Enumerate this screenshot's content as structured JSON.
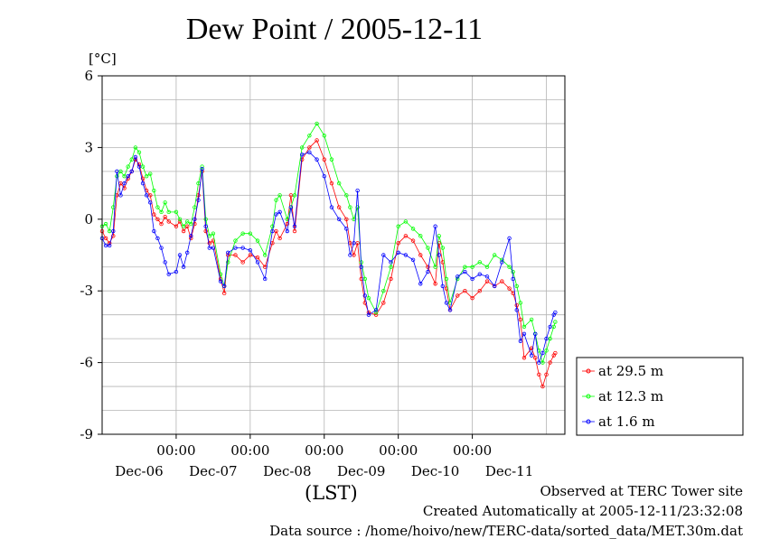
{
  "chart_data": {
    "type": "line",
    "title": "Dew Point / 2005-12-11",
    "ylabel": "[°C]",
    "xlabel": "(LST)",
    "ylim": [
      -9,
      6
    ],
    "yticks": [
      -9,
      -6,
      -3,
      0,
      3,
      6
    ],
    "xlim": [
      0,
      6.25
    ],
    "xticks": [
      {
        "x": 1,
        "top": "00:00",
        "bottom": "Dec-07"
      },
      {
        "x": 2,
        "top": "00:00",
        "bottom": "Dec-08"
      },
      {
        "x": 3,
        "top": "00:00",
        "bottom": "Dec-09"
      },
      {
        "x": 4,
        "top": "00:00",
        "bottom": "Dec-10"
      },
      {
        "x": 5,
        "top": "00:00",
        "bottom": "Dec-11"
      }
    ],
    "day_labels": [
      {
        "x": 0.5,
        "label": "Dec-06"
      },
      {
        "x": 1.5,
        "label": "Dec-07"
      },
      {
        "x": 2.5,
        "label": "Dec-08"
      },
      {
        "x": 3.5,
        "label": "Dec-09"
      },
      {
        "x": 4.5,
        "label": "Dec-10"
      },
      {
        "x": 5.5,
        "label": "Dec-11"
      }
    ],
    "x_note": "x = days since 2005-12-06 00:00 LST",
    "grid": true,
    "legend_position": "bottom-right, outside",
    "series": [
      {
        "name": "at 29.5 m",
        "color": "#ff0000",
        "points": [
          [
            0,
            -0.5
          ],
          [
            0.05,
            -0.8
          ],
          [
            0.1,
            -1.0
          ],
          [
            0.15,
            -0.7
          ],
          [
            0.2,
            1.0
          ],
          [
            0.25,
            1.5
          ],
          [
            0.3,
            1.3
          ],
          [
            0.35,
            1.7
          ],
          [
            0.4,
            2.0
          ],
          [
            0.45,
            2.5
          ],
          [
            0.5,
            2.3
          ],
          [
            0.55,
            1.7
          ],
          [
            0.6,
            1.2
          ],
          [
            0.65,
            1.0
          ],
          [
            0.7,
            0.2
          ],
          [
            0.75,
            0.0
          ],
          [
            0.8,
            -0.2
          ],
          [
            0.85,
            0.1
          ],
          [
            0.9,
            -0.1
          ],
          [
            1.0,
            -0.3
          ],
          [
            1.05,
            -0.1
          ],
          [
            1.1,
            -0.5
          ],
          [
            1.15,
            -0.3
          ],
          [
            1.2,
            -0.8
          ],
          [
            1.25,
            -0.2
          ],
          [
            1.3,
            1.0
          ],
          [
            1.35,
            2.0
          ],
          [
            1.4,
            -0.5
          ],
          [
            1.45,
            -1.0
          ],
          [
            1.5,
            -0.9
          ],
          [
            1.6,
            -2.5
          ],
          [
            1.65,
            -3.1
          ],
          [
            1.7,
            -1.5
          ],
          [
            1.8,
            -1.5
          ],
          [
            1.9,
            -1.8
          ],
          [
            2.0,
            -1.5
          ],
          [
            2.1,
            -1.6
          ],
          [
            2.2,
            -2.0
          ],
          [
            2.3,
            -1.0
          ],
          [
            2.35,
            -0.5
          ],
          [
            2.4,
            -0.8
          ],
          [
            2.5,
            -0.2
          ],
          [
            2.55,
            1.0
          ],
          [
            2.6,
            -0.5
          ],
          [
            2.7,
            2.5
          ],
          [
            2.8,
            3.0
          ],
          [
            2.9,
            3.3
          ],
          [
            3.0,
            2.5
          ],
          [
            3.1,
            1.5
          ],
          [
            3.2,
            0.5
          ],
          [
            3.3,
            0.0
          ],
          [
            3.35,
            -1.0
          ],
          [
            3.4,
            -1.5
          ],
          [
            3.45,
            -1.0
          ],
          [
            3.5,
            -2.5
          ],
          [
            3.55,
            -3.5
          ],
          [
            3.6,
            -3.9
          ],
          [
            3.7,
            -4.0
          ],
          [
            3.8,
            -3.5
          ],
          [
            3.9,
            -2.5
          ],
          [
            4.0,
            -1.0
          ],
          [
            4.1,
            -0.7
          ],
          [
            4.2,
            -0.9
          ],
          [
            4.3,
            -1.5
          ],
          [
            4.4,
            -2.0
          ],
          [
            4.5,
            -2.7
          ],
          [
            4.55,
            -1.0
          ],
          [
            4.6,
            -1.8
          ],
          [
            4.65,
            -2.9
          ],
          [
            4.7,
            -3.8
          ],
          [
            4.8,
            -3.2
          ],
          [
            4.9,
            -3.0
          ],
          [
            5.0,
            -3.3
          ],
          [
            5.1,
            -3.0
          ],
          [
            5.2,
            -2.6
          ],
          [
            5.3,
            -2.8
          ],
          [
            5.4,
            -2.6
          ],
          [
            5.5,
            -2.9
          ],
          [
            5.55,
            -3.1
          ],
          [
            5.6,
            -3.6
          ],
          [
            5.65,
            -4.2
          ],
          [
            5.7,
            -5.8
          ],
          [
            5.8,
            -5.4
          ],
          [
            5.85,
            -5.8
          ],
          [
            5.9,
            -6.5
          ],
          [
            5.95,
            -7.0
          ],
          [
            6.0,
            -6.5
          ],
          [
            6.05,
            -6.0
          ],
          [
            6.1,
            -5.7
          ],
          [
            6.12,
            -5.6
          ]
        ]
      },
      {
        "name": "at 12.3 m",
        "color": "#00ff00",
        "points": [
          [
            0,
            -0.3
          ],
          [
            0.05,
            -0.2
          ],
          [
            0.1,
            -0.5
          ],
          [
            0.15,
            0.5
          ],
          [
            0.2,
            1.8
          ],
          [
            0.25,
            2.0
          ],
          [
            0.3,
            1.8
          ],
          [
            0.35,
            2.2
          ],
          [
            0.4,
            2.5
          ],
          [
            0.45,
            3.0
          ],
          [
            0.5,
            2.8
          ],
          [
            0.55,
            2.2
          ],
          [
            0.6,
            1.8
          ],
          [
            0.65,
            1.9
          ],
          [
            0.7,
            1.2
          ],
          [
            0.75,
            0.5
          ],
          [
            0.8,
            0.3
          ],
          [
            0.85,
            0.7
          ],
          [
            0.9,
            0.3
          ],
          [
            1.0,
            0.3
          ],
          [
            1.05,
            0.0
          ],
          [
            1.1,
            -0.3
          ],
          [
            1.15,
            -0.1
          ],
          [
            1.2,
            -0.2
          ],
          [
            1.25,
            0.5
          ],
          [
            1.3,
            1.5
          ],
          [
            1.35,
            2.2
          ],
          [
            1.4,
            0.0
          ],
          [
            1.45,
            -0.7
          ],
          [
            1.5,
            -0.6
          ],
          [
            1.6,
            -2.3
          ],
          [
            1.65,
            -2.8
          ],
          [
            1.7,
            -1.8
          ],
          [
            1.8,
            -0.9
          ],
          [
            1.9,
            -0.6
          ],
          [
            2.0,
            -0.6
          ],
          [
            2.1,
            -0.9
          ],
          [
            2.2,
            -1.5
          ],
          [
            2.3,
            -0.3
          ],
          [
            2.35,
            0.8
          ],
          [
            2.4,
            1.0
          ],
          [
            2.5,
            0.0
          ],
          [
            2.55,
            0.5
          ],
          [
            2.6,
            1.0
          ],
          [
            2.7,
            3.0
          ],
          [
            2.8,
            3.5
          ],
          [
            2.9,
            4.0
          ],
          [
            3.0,
            3.5
          ],
          [
            3.1,
            2.5
          ],
          [
            3.2,
            1.5
          ],
          [
            3.3,
            1.0
          ],
          [
            3.35,
            0.5
          ],
          [
            3.4,
            0.0
          ],
          [
            3.45,
            0.5
          ],
          [
            3.5,
            -1.8
          ],
          [
            3.55,
            -2.5
          ],
          [
            3.6,
            -3.3
          ],
          [
            3.7,
            -3.9
          ],
          [
            3.8,
            -3.0
          ],
          [
            3.9,
            -2.0
          ],
          [
            4.0,
            -0.3
          ],
          [
            4.1,
            -0.1
          ],
          [
            4.2,
            -0.4
          ],
          [
            4.3,
            -0.7
          ],
          [
            4.4,
            -1.2
          ],
          [
            4.5,
            -2.0
          ],
          [
            4.55,
            -0.7
          ],
          [
            4.6,
            -1.2
          ],
          [
            4.65,
            -2.5
          ],
          [
            4.7,
            -3.5
          ],
          [
            4.8,
            -2.5
          ],
          [
            4.9,
            -2.0
          ],
          [
            5.0,
            -2.0
          ],
          [
            5.1,
            -1.8
          ],
          [
            5.2,
            -2.0
          ],
          [
            5.3,
            -1.5
          ],
          [
            5.4,
            -1.7
          ],
          [
            5.5,
            -2.0
          ],
          [
            5.55,
            -2.2
          ],
          [
            5.6,
            -2.8
          ],
          [
            5.65,
            -3.5
          ],
          [
            5.7,
            -4.5
          ],
          [
            5.8,
            -4.2
          ],
          [
            5.85,
            -4.8
          ],
          [
            5.9,
            -5.5
          ],
          [
            5.95,
            -6.0
          ],
          [
            6.0,
            -5.5
          ],
          [
            6.05,
            -5.0
          ],
          [
            6.1,
            -4.5
          ],
          [
            6.12,
            -4.3
          ]
        ]
      },
      {
        "name": "at 1.6 m",
        "color": "#0000ff",
        "points": [
          [
            0,
            -0.8
          ],
          [
            0.05,
            -1.1
          ],
          [
            0.1,
            -1.1
          ],
          [
            0.15,
            -0.5
          ],
          [
            0.2,
            2.0
          ],
          [
            0.25,
            1.0
          ],
          [
            0.3,
            1.5
          ],
          [
            0.35,
            1.8
          ],
          [
            0.4,
            2.0
          ],
          [
            0.45,
            2.6
          ],
          [
            0.5,
            2.2
          ],
          [
            0.55,
            1.5
          ],
          [
            0.6,
            1.0
          ],
          [
            0.65,
            0.7
          ],
          [
            0.7,
            -0.5
          ],
          [
            0.75,
            -0.8
          ],
          [
            0.8,
            -1.2
          ],
          [
            0.85,
            -1.8
          ],
          [
            0.9,
            -2.3
          ],
          [
            1.0,
            -2.2
          ],
          [
            1.05,
            -1.5
          ],
          [
            1.1,
            -2.0
          ],
          [
            1.15,
            -1.4
          ],
          [
            1.2,
            -0.7
          ],
          [
            1.25,
            0.0
          ],
          [
            1.3,
            0.8
          ],
          [
            1.35,
            2.1
          ],
          [
            1.4,
            -0.3
          ],
          [
            1.45,
            -1.2
          ],
          [
            1.5,
            -1.2
          ],
          [
            1.6,
            -2.6
          ],
          [
            1.65,
            -2.8
          ],
          [
            1.7,
            -1.4
          ],
          [
            1.8,
            -1.2
          ],
          [
            1.9,
            -1.2
          ],
          [
            2.0,
            -1.3
          ],
          [
            2.1,
            -1.8
          ],
          [
            2.2,
            -2.5
          ],
          [
            2.3,
            -0.5
          ],
          [
            2.35,
            0.2
          ],
          [
            2.4,
            0.3
          ],
          [
            2.5,
            -0.5
          ],
          [
            2.55,
            0.5
          ],
          [
            2.6,
            -0.3
          ],
          [
            2.7,
            2.7
          ],
          [
            2.8,
            2.8
          ],
          [
            2.9,
            2.5
          ],
          [
            3.0,
            1.8
          ],
          [
            3.1,
            0.5
          ],
          [
            3.2,
            0.0
          ],
          [
            3.3,
            -0.4
          ],
          [
            3.35,
            -1.5
          ],
          [
            3.4,
            -1.0
          ],
          [
            3.45,
            1.2
          ],
          [
            3.5,
            -2.0
          ],
          [
            3.55,
            -3.2
          ],
          [
            3.6,
            -4.0
          ],
          [
            3.7,
            -3.8
          ],
          [
            3.8,
            -1.5
          ],
          [
            3.9,
            -1.8
          ],
          [
            4.0,
            -1.4
          ],
          [
            4.1,
            -1.5
          ],
          [
            4.2,
            -1.7
          ],
          [
            4.3,
            -2.7
          ],
          [
            4.4,
            -2.2
          ],
          [
            4.5,
            -0.3
          ],
          [
            4.55,
            -1.5
          ],
          [
            4.6,
            -2.8
          ],
          [
            4.65,
            -3.5
          ],
          [
            4.7,
            -3.8
          ],
          [
            4.8,
            -2.4
          ],
          [
            4.9,
            -2.2
          ],
          [
            5.0,
            -2.5
          ],
          [
            5.1,
            -2.3
          ],
          [
            5.2,
            -2.4
          ],
          [
            5.3,
            -2.8
          ],
          [
            5.4,
            -1.8
          ],
          [
            5.5,
            -0.8
          ],
          [
            5.55,
            -2.5
          ],
          [
            5.6,
            -3.8
          ],
          [
            5.65,
            -5.1
          ],
          [
            5.7,
            -4.8
          ],
          [
            5.8,
            -5.7
          ],
          [
            5.85,
            -4.8
          ],
          [
            5.9,
            -6.0
          ],
          [
            5.95,
            -5.6
          ],
          [
            6.0,
            -5.0
          ],
          [
            6.05,
            -4.5
          ],
          [
            6.1,
            -4.0
          ],
          [
            6.12,
            -3.9
          ]
        ]
      }
    ]
  },
  "footer": {
    "line1": "Observed at TERC Tower site",
    "line2": "Created Automatically at 2005-12-11/23:32:08",
    "line3": "Data source : /home/hoivo/new/TERC-data/sorted_data/MET.30m.dat"
  }
}
